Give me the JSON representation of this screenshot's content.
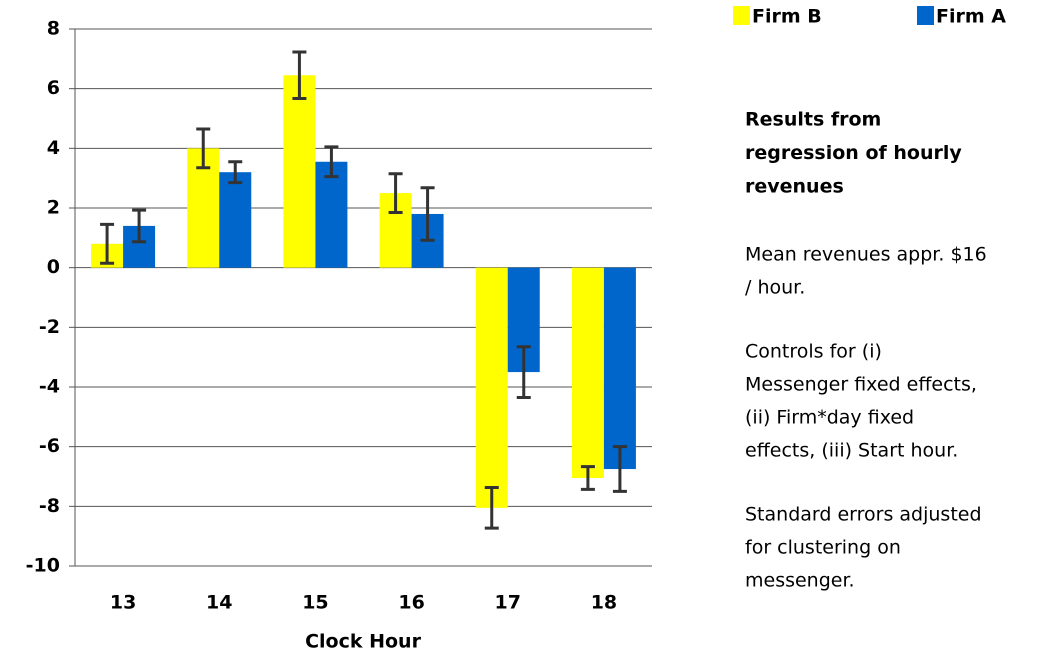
{
  "chart_data": {
    "type": "bar",
    "x_label": "Clock Hour",
    "categories": [
      "13",
      "14",
      "15",
      "16",
      "17",
      "18"
    ],
    "series": [
      {
        "name": "Firm B",
        "color": "#ffff00",
        "values": [
          0.8,
          4.0,
          6.45,
          2.5,
          -8.05,
          -7.05
        ],
        "errors": [
          0.65,
          0.65,
          0.78,
          0.65,
          0.68,
          0.38
        ]
      },
      {
        "name": "Firm A",
        "color": "#0066cc",
        "values": [
          1.4,
          3.2,
          3.55,
          1.8,
          -3.5,
          -6.75
        ],
        "errors": [
          0.53,
          0.35,
          0.5,
          0.88,
          0.85,
          0.75
        ]
      }
    ],
    "ylim": [
      -10,
      8
    ],
    "yticks": [
      -10,
      -8,
      -6,
      -4,
      -2,
      0,
      2,
      4,
      6,
      8
    ],
    "grid": true,
    "legend": "top-right",
    "note_title": [
      "Results from",
      "regression of hourly",
      "revenues"
    ],
    "notes": [
      [
        "Mean revenues appr. $16",
        "/ hour."
      ],
      [
        "Controls for (i)",
        "Messenger fixed effects,",
        "(ii) Firm*day fixed",
        "effects, (iii) Start hour."
      ],
      [
        "Standard errors adjusted",
        "for clustering on",
        "messenger."
      ]
    ]
  }
}
